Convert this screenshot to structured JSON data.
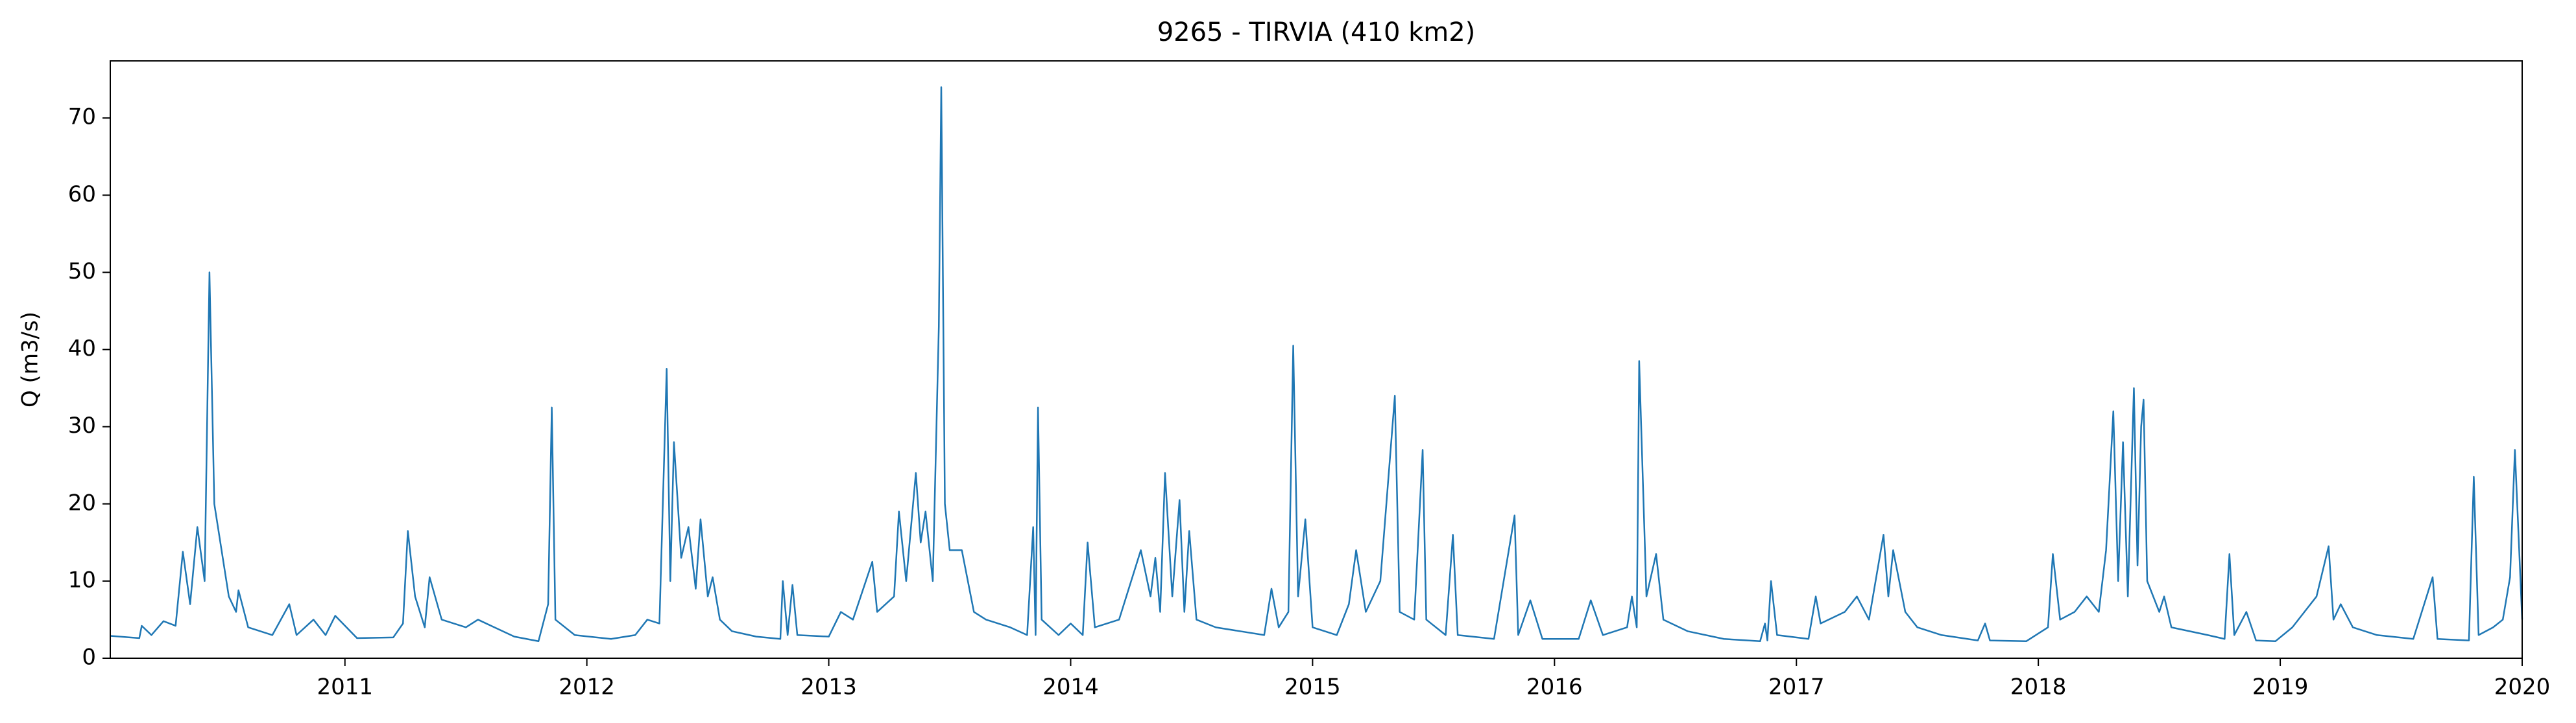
{
  "chart_data": {
    "type": "line",
    "title": "9265 - TIRVIA (410 km2)",
    "y_label": "Q (m3/s)",
    "color": "#1f77b4",
    "xlim": [
      2010.03,
      2020
    ],
    "ylim": [
      0,
      77.4
    ],
    "xticks": [
      2011,
      2012,
      2013,
      2014,
      2015,
      2016,
      2017,
      2018,
      2019,
      2020
    ],
    "yticks": [
      0,
      10,
      20,
      30,
      40,
      50,
      60,
      70
    ],
    "x": [
      2010.03,
      2010.15,
      2010.16,
      2010.2,
      2010.25,
      2010.3,
      2010.33,
      2010.36,
      2010.39,
      2010.42,
      2010.44,
      2010.46,
      2010.49,
      2010.52,
      2010.55,
      2010.56,
      2010.6,
      2010.7,
      2010.77,
      2010.8,
      2010.87,
      2010.92,
      2010.96,
      2011.05,
      2011.2,
      2011.24,
      2011.26,
      2011.29,
      2011.33,
      2011.35,
      2011.4,
      2011.5,
      2011.55,
      2011.7,
      2011.8,
      2011.84,
      2011.855,
      2011.87,
      2011.95,
      2012.1,
      2012.2,
      2012.25,
      2012.3,
      2012.33,
      2012.345,
      2012.36,
      2012.39,
      2012.42,
      2012.45,
      2012.47,
      2012.5,
      2012.52,
      2012.55,
      2012.6,
      2012.7,
      2012.8,
      2012.81,
      2012.83,
      2012.85,
      2012.87,
      2013.0,
      2013.05,
      2013.1,
      2013.18,
      2013.2,
      2013.27,
      2013.29,
      2013.32,
      2013.36,
      2013.38,
      2013.4,
      2013.43,
      2013.455,
      2013.465,
      2013.48,
      2013.5,
      2013.55,
      2013.6,
      2013.65,
      2013.75,
      2013.82,
      2013.845,
      2013.855,
      2013.865,
      2013.88,
      2013.95,
      2014.0,
      2014.05,
      2014.07,
      2014.1,
      2014.2,
      2014.25,
      2014.29,
      2014.33,
      2014.35,
      2014.37,
      2014.39,
      2014.42,
      2014.45,
      2014.47,
      2014.49,
      2014.52,
      2014.6,
      2014.7,
      2014.8,
      2014.83,
      2014.86,
      2014.9,
      2014.92,
      2014.94,
      2014.97,
      2015.0,
      2015.1,
      2015.15,
      2015.18,
      2015.22,
      2015.28,
      2015.34,
      2015.36,
      2015.42,
      2015.455,
      2015.47,
      2015.55,
      2015.58,
      2015.6,
      2015.75,
      2015.835,
      2015.85,
      2015.9,
      2015.95,
      2016.1,
      2016.15,
      2016.2,
      2016.3,
      2016.32,
      2016.34,
      2016.35,
      2016.38,
      2016.42,
      2016.45,
      2016.55,
      2016.7,
      2016.85,
      2016.87,
      2016.88,
      2016.895,
      2016.92,
      2017.05,
      2017.08,
      2017.1,
      2017.2,
      2017.25,
      2017.3,
      2017.36,
      2017.38,
      2017.4,
      2017.45,
      2017.5,
      2017.6,
      2017.75,
      2017.78,
      2017.8,
      2017.95,
      2018.04,
      2018.06,
      2018.09,
      2018.15,
      2018.2,
      2018.25,
      2018.28,
      2018.31,
      2018.33,
      2018.35,
      2018.37,
      2018.395,
      2018.41,
      2018.425,
      2018.435,
      2018.45,
      2018.5,
      2018.52,
      2018.55,
      2018.7,
      2018.77,
      2018.79,
      2018.81,
      2018.86,
      2018.9,
      2018.98,
      2019.05,
      2019.1,
      2019.15,
      2019.2,
      2019.22,
      2019.25,
      2019.3,
      2019.4,
      2019.55,
      2019.63,
      2019.65,
      2019.78,
      2019.8,
      2019.82,
      2019.88,
      2019.92,
      2019.95,
      2019.97,
      2020.0
    ],
    "values": [
      2.9,
      2.6,
      4.2,
      3,
      4.8,
      4.2,
      13.8,
      7,
      17,
      10,
      50,
      20,
      14,
      8,
      6,
      8.8,
      4,
      3,
      7,
      3,
      5,
      3,
      5.5,
      2.6,
      2.7,
      4.5,
      16.5,
      8,
      4,
      10.5,
      5,
      4,
      5,
      2.8,
      2.2,
      7,
      32.5,
      5,
      3,
      2.5,
      3,
      5,
      4.5,
      37.5,
      10,
      28,
      13,
      17,
      9,
      18,
      8,
      10.5,
      5,
      3.5,
      2.8,
      2.5,
      10,
      3,
      9.5,
      3,
      2.8,
      6,
      5,
      12.5,
      6,
      8,
      19,
      10,
      24,
      15,
      19,
      10,
      43,
      74,
      20,
      14,
      14,
      6,
      5,
      4,
      3,
      17,
      3,
      32.5,
      5,
      3,
      4.5,
      3,
      15,
      4,
      5,
      10,
      14,
      8,
      13,
      6,
      24,
      8,
      20.5,
      6,
      16.5,
      5,
      4,
      3.5,
      3,
      9,
      4,
      6,
      40.5,
      8,
      18,
      4,
      3,
      7,
      14,
      6,
      10,
      34,
      6,
      5,
      27,
      5,
      3,
      16,
      3,
      2.5,
      18.5,
      3,
      7.5,
      2.5,
      2.5,
      7.5,
      3,
      4,
      8,
      4,
      38.5,
      8,
      13.5,
      5,
      3.5,
      2.5,
      2.2,
      4.5,
      2.3,
      10,
      3,
      2.5,
      8,
      4.5,
      6,
      8,
      5,
      16,
      8,
      14,
      6,
      4,
      3,
      2.3,
      4.5,
      2.3,
      2.2,
      4,
      13.5,
      5,
      6,
      8,
      6,
      14,
      32,
      10,
      28,
      8,
      35,
      12,
      30,
      33.5,
      10,
      6,
      8,
      4,
      3,
      2.5,
      13.5,
      3,
      6,
      2.3,
      2.2,
      4,
      6,
      8,
      14.5,
      5,
      7,
      4,
      3,
      2.5,
      10.5,
      2.5,
      2.3,
      23.5,
      3,
      4,
      5,
      10.5,
      27,
      5
    ]
  }
}
